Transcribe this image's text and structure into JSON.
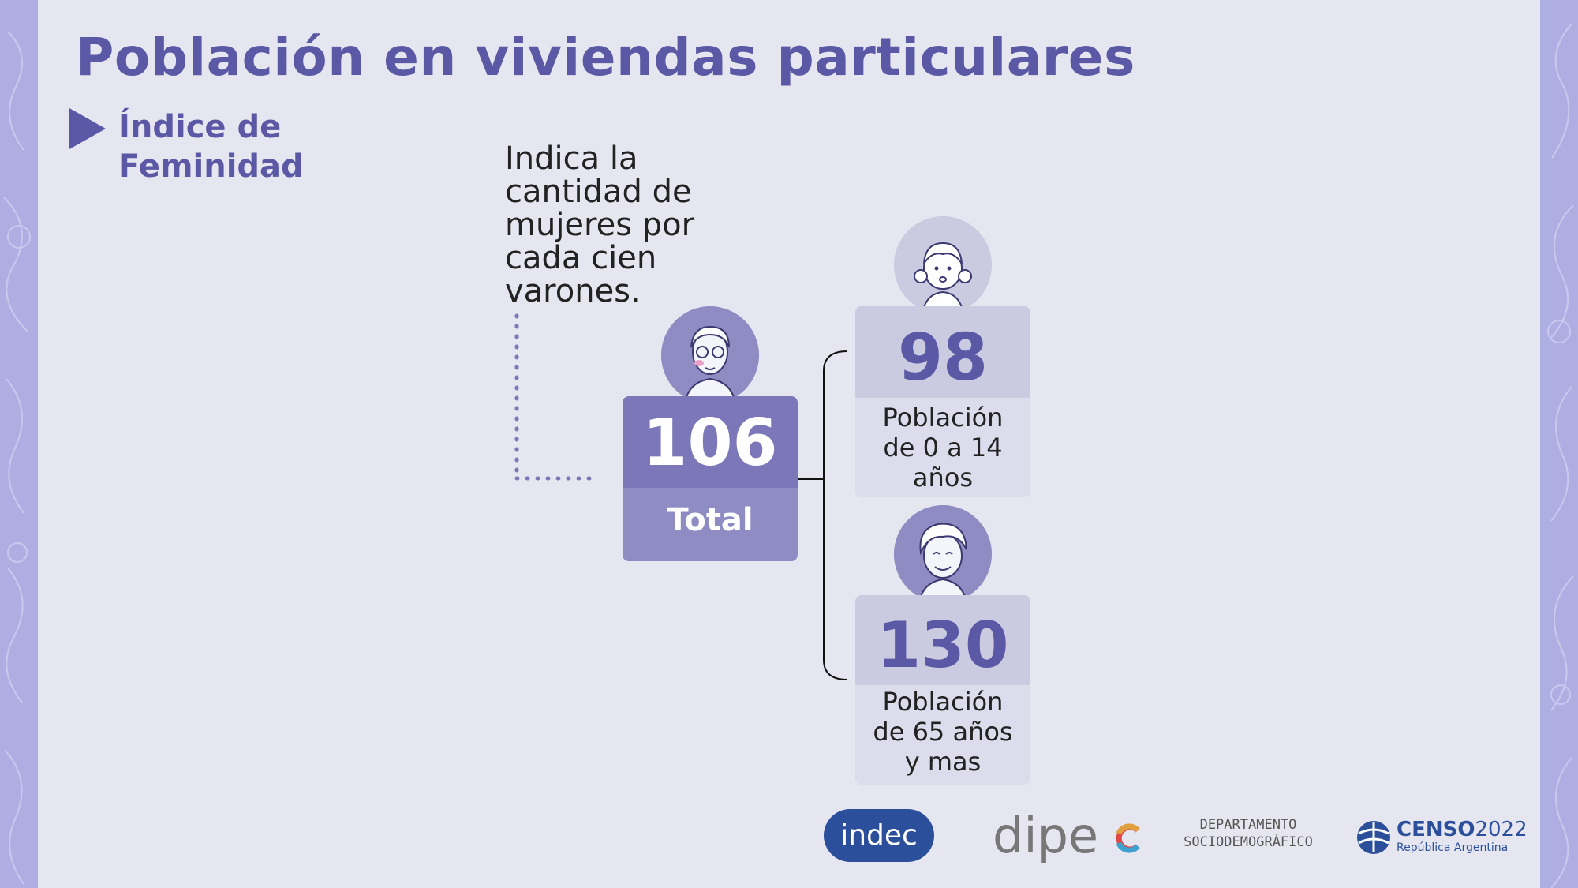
{
  "slide": {
    "title": "Población en viviendas particulares",
    "subtitle_line1": "Índice de",
    "subtitle_line2": "Feminidad",
    "description": "Indica la cantidad de mujeres por cada cien varones."
  },
  "total": {
    "value": "106",
    "label": "Total"
  },
  "groups": [
    {
      "value": "98",
      "label_line1": "Población",
      "label_line2": "de 0 a 14",
      "label_line3": "años"
    },
    {
      "value": "130",
      "label_line1": "Población",
      "label_line2": "de 65 años",
      "label_line3": "y mas"
    }
  ],
  "logos": {
    "indec": "indec",
    "dipec": "dipe",
    "depto_line1": "DEPARTAMENTO",
    "depto_line2": "SOCIODEMOGRÁFICO",
    "censo_main": "CENSO",
    "censo_year": "2022",
    "censo_sub": "República Argentina"
  },
  "colors": {
    "accent": "#5b58a5",
    "box_dark": "#7b77b8",
    "box_mid": "#8f8cc4",
    "box_light": "#cacae0",
    "box_pale": "#dcdcec",
    "indec_blue": "#2b4f9a",
    "background": "#e6e6f0"
  },
  "icons": [
    "woman-glasses-icon",
    "girl-icon",
    "elderly-woman-icon",
    "censo-globe-icon"
  ]
}
